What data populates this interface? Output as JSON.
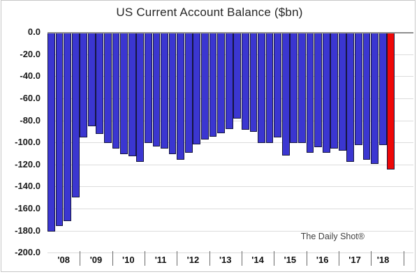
{
  "title": "US Current Account Balance ($bn)",
  "watermark": "The Daily Shot®",
  "colors": {
    "bar_fill": "#3b36d1",
    "highlight_fill": "#ee0808",
    "bar_border": "#16163f",
    "grid": "#dcdcdc",
    "zero_line": "#8f8f8f",
    "text": "#1a1a1a",
    "frame": "#c6c6c6"
  },
  "chart_data": {
    "type": "bar",
    "title": "US Current Account Balance ($bn)",
    "xlabel": "",
    "ylabel": "",
    "unit": "$bn",
    "ylim": [
      -200,
      0
    ],
    "grid": "horizontal",
    "legend": "none",
    "y_tick_labels": [
      "0.0",
      "-20.0",
      "-40.0",
      "-60.0",
      "-80.0",
      "-100.0",
      "-120.0",
      "-140.0",
      "-160.0",
      "-180.0",
      "-200.0"
    ],
    "y_tick_values": [
      0,
      -20,
      -40,
      -60,
      -80,
      -100,
      -120,
      -140,
      -160,
      -180,
      -200
    ],
    "year_labels": [
      "'08",
      "'09",
      "'10",
      "'11",
      "'12",
      "'13",
      "'14",
      "'15",
      "'16",
      "'17",
      "'18"
    ],
    "bars_per_year": [
      4,
      4,
      4,
      4,
      4,
      4,
      4,
      4,
      4,
      4,
      3
    ],
    "series": [
      {
        "name": "US Current Account Balance ($bn), quarterly",
        "values": [
          -180,
          -175,
          -171,
          -149,
          -95,
          -85,
          -92,
          -100,
          -105,
          -110,
          -112,
          -117,
          -100,
          -103,
          -105,
          -110,
          -115,
          -109,
          -101,
          -97,
          -94,
          -91,
          -87,
          -78,
          -88,
          -90,
          -100,
          -100,
          -95,
          -111,
          -100,
          -100,
          -109,
          -104,
          -109,
          -105,
          -107,
          -117,
          -102,
          -115,
          -119,
          -102,
          -124
        ]
      }
    ],
    "highlight_last_bar": true,
    "annotations": [
      "The Daily Shot®"
    ]
  }
}
